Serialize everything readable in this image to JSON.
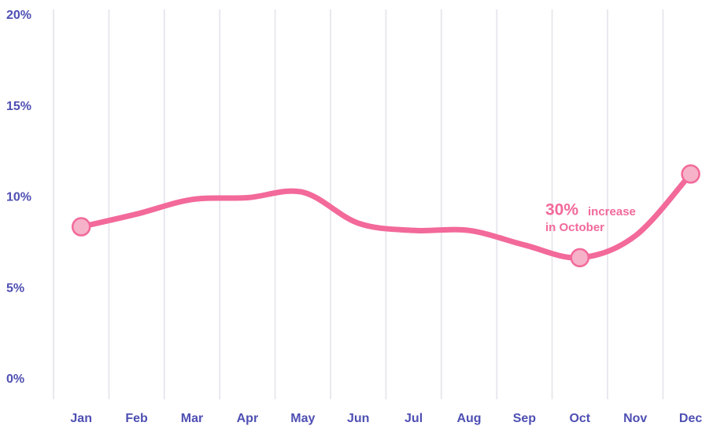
{
  "chart_data": {
    "type": "line",
    "categories": [
      "Jan",
      "Feb",
      "Mar",
      "Apr",
      "May",
      "Jun",
      "Jul",
      "Aug",
      "Sep",
      "Oct",
      "Nov",
      "Dec"
    ],
    "series": [
      {
        "color": "#f2699a",
        "values": [
          8.4,
          9.1,
          9.9,
          10.0,
          10.3,
          8.6,
          8.2,
          8.2,
          7.4,
          6.7,
          7.9,
          11.3
        ]
      }
    ],
    "markers": [
      0,
      9,
      11
    ],
    "ylim": [
      0,
      20
    ],
    "yticks": [
      {
        "value": 0,
        "label": "0%"
      },
      {
        "value": 5,
        "label": "5%"
      },
      {
        "value": 10,
        "label": "10%"
      },
      {
        "value": 15,
        "label": "15%"
      },
      {
        "value": 20,
        "label": "20%"
      }
    ],
    "grid": true,
    "annotation": {
      "highlight": "30%",
      "text": "increase",
      "subtext": "in October"
    }
  }
}
